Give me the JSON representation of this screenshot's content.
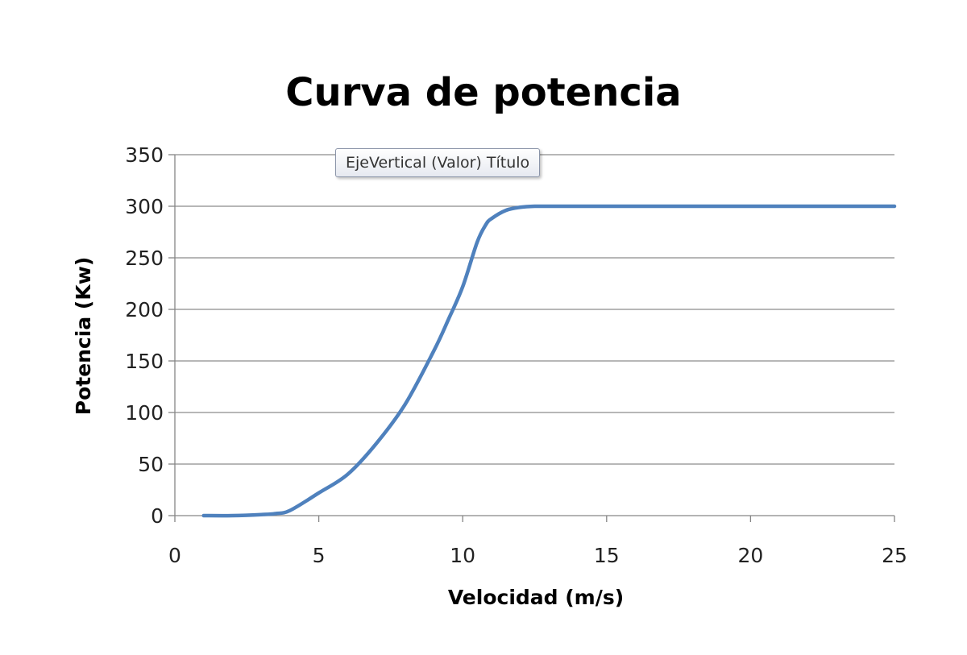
{
  "chart_data": {
    "type": "line",
    "title": "Curva de potencia",
    "xlabel": "Velocidad (m/s)",
    "ylabel": "Potencia (Kw)",
    "xlim": [
      0,
      25
    ],
    "ylim": [
      0,
      350
    ],
    "x_ticks": [
      0,
      5,
      10,
      15,
      20,
      25
    ],
    "y_ticks": [
      0,
      50,
      100,
      150,
      200,
      250,
      300,
      350
    ],
    "grid": "horizontal",
    "legend": "none",
    "series": [
      {
        "color": "#4f81bd",
        "x": [
          1,
          2,
          3,
          3.5,
          4,
          5,
          6,
          7,
          8,
          9,
          9.5,
          10,
          10.5,
          10.8,
          11,
          11.5,
          12,
          12.5,
          13,
          15,
          20,
          25
        ],
        "y": [
          0,
          0,
          1,
          2,
          5,
          22,
          40,
          70,
          108,
          160,
          190,
          222,
          265,
          282,
          288,
          296,
          299,
          300,
          300,
          300,
          300,
          300
        ]
      }
    ]
  },
  "tooltip": {
    "text": "EjeVertical (Valor)  Título"
  }
}
